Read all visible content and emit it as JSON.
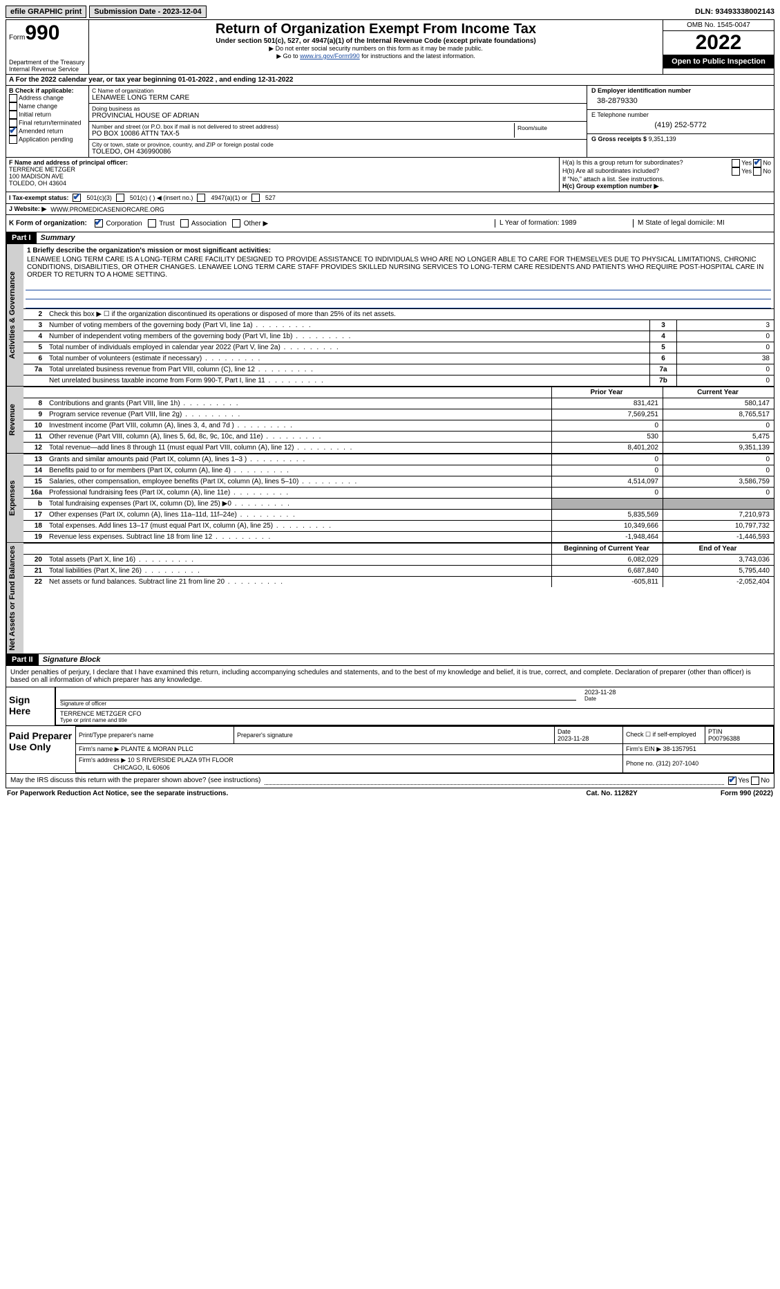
{
  "topbar": {
    "efile": "efile GRAPHIC print",
    "submission": "Submission Date - 2023-12-04",
    "dln": "DLN: 93493338002143"
  },
  "header": {
    "form_label": "Form",
    "form_num": "990",
    "dept": "Department of the Treasury",
    "irs": "Internal Revenue Service",
    "title": "Return of Organization Exempt From Income Tax",
    "subtitle": "Under section 501(c), 527, or 4947(a)(1) of the Internal Revenue Code (except private foundations)",
    "note1": "Do not enter social security numbers on this form as it may be made public.",
    "note2_pre": "Go to ",
    "note2_link": "www.irs.gov/Form990",
    "note2_post": " for instructions and the latest information.",
    "omb": "OMB No. 1545-0047",
    "year": "2022",
    "open": "Open to Public Inspection"
  },
  "sectionA": "A For the 2022 calendar year, or tax year beginning 01-01-2022    , and ending 12-31-2022",
  "colB": {
    "title": "B Check if applicable:",
    "items": [
      "Address change",
      "Name change",
      "Initial return",
      "Final return/terminated",
      "Amended return",
      "Application pending"
    ],
    "checked_idx": 4
  },
  "colC": {
    "name_label": "C Name of organization",
    "name": "LENAWEE LONG TERM CARE",
    "dba_label": "Doing business as",
    "dba": "PROVINCIAL HOUSE OF ADRIAN",
    "addr_label": "Number and street (or P.O. box if mail is not delivered to street address)",
    "addr": "PO BOX 10086 ATTN TAX-5",
    "room_label": "Room/suite",
    "city_label": "City or town, state or province, country, and ZIP or foreign postal code",
    "city": "TOLEDO, OH  436990086"
  },
  "colD": {
    "d_label": "D Employer identification number",
    "d_val": "38-2879330",
    "e_label": "E Telephone number",
    "e_val": "(419) 252-5772",
    "g_label": "G Gross receipts $",
    "g_val": "9,351,139"
  },
  "rowFGH": {
    "f_label": "F  Name and address of principal officer:",
    "f_name": "TERRENCE METZGER",
    "f_addr1": "100 MADISON AVE",
    "f_addr2": "TOLEDO, OH  43604",
    "ha": "H(a)  Is this a group return for subordinates?",
    "hb": "H(b)  Are all subordinates included?",
    "hb_note": "If \"No,\" attach a list. See instructions.",
    "hc": "H(c)  Group exemption number ▶",
    "yes": "Yes",
    "no": "No"
  },
  "rowI": {
    "label": "I   Tax-exempt status:",
    "o1": "501(c)(3)",
    "o2": "501(c) (  ) ◀ (insert no.)",
    "o3": "4947(a)(1) or",
    "o4": "527"
  },
  "rowJ": {
    "label": "J   Website: ▶",
    "val": "WWW.PROMEDICASENIORCARE.ORG"
  },
  "rowK": {
    "label": "K Form of organization:",
    "opts": [
      "Corporation",
      "Trust",
      "Association",
      "Other ▶"
    ],
    "l": "L Year of formation: 1989",
    "m": "M State of legal domicile: MI"
  },
  "part1": {
    "header": "Part I",
    "title": "Summary"
  },
  "summary": {
    "q1_label": "1  Briefly describe the organization's mission or most significant activities:",
    "q1_text": "LENAWEE LONG TERM CARE IS A LONG-TERM CARE FACILITY DESIGNED TO PROVIDE ASSISTANCE TO INDIVIDUALS WHO ARE NO LONGER ABLE TO CARE FOR THEMSELVES DUE TO PHYSICAL LIMITATIONS, CHRONIC CONDITIONS, DISABILITIES, OR OTHER CHANGES. LENAWEE LONG TERM CARE STAFF PROVIDES SKILLED NURSING SERVICES TO LONG-TERM CARE RESIDENTS AND PATIENTS WHO REQUIRE POST-HOSPITAL CARE IN ORDER TO RETURN TO A HOME SETTING.",
    "q2": "Check this box ▶ ☐  if the organization discontinued its operations or disposed of more than 25% of its net assets.",
    "rows_gov": [
      {
        "n": "3",
        "label": "Number of voting members of the governing body (Part VI, line 1a)",
        "k": "3",
        "v": "3"
      },
      {
        "n": "4",
        "label": "Number of independent voting members of the governing body (Part VI, line 1b)",
        "k": "4",
        "v": "0"
      },
      {
        "n": "5",
        "label": "Total number of individuals employed in calendar year 2022 (Part V, line 2a)",
        "k": "5",
        "v": "0"
      },
      {
        "n": "6",
        "label": "Total number of volunteers (estimate if necessary)",
        "k": "6",
        "v": "38"
      },
      {
        "n": "7a",
        "label": "Total unrelated business revenue from Part VIII, column (C), line 12",
        "k": "7a",
        "v": "0"
      },
      {
        "n": "",
        "label": "Net unrelated business taxable income from Form 990-T, Part I, line 11",
        "k": "7b",
        "v": "0"
      }
    ],
    "hdr_prior": "Prior Year",
    "hdr_current": "Current Year",
    "rows_rev": [
      {
        "n": "8",
        "label": "Contributions and grants (Part VIII, line 1h)",
        "p": "831,421",
        "c": "580,147"
      },
      {
        "n": "9",
        "label": "Program service revenue (Part VIII, line 2g)",
        "p": "7,569,251",
        "c": "8,765,517"
      },
      {
        "n": "10",
        "label": "Investment income (Part VIII, column (A), lines 3, 4, and 7d )",
        "p": "0",
        "c": "0"
      },
      {
        "n": "11",
        "label": "Other revenue (Part VIII, column (A), lines 5, 6d, 8c, 9c, 10c, and 11e)",
        "p": "530",
        "c": "5,475"
      },
      {
        "n": "12",
        "label": "Total revenue—add lines 8 through 11 (must equal Part VIII, column (A), line 12)",
        "p": "8,401,202",
        "c": "9,351,139"
      }
    ],
    "rows_exp": [
      {
        "n": "13",
        "label": "Grants and similar amounts paid (Part IX, column (A), lines 1–3 )",
        "p": "0",
        "c": "0"
      },
      {
        "n": "14",
        "label": "Benefits paid to or for members (Part IX, column (A), line 4)",
        "p": "0",
        "c": "0"
      },
      {
        "n": "15",
        "label": "Salaries, other compensation, employee benefits (Part IX, column (A), lines 5–10)",
        "p": "4,514,097",
        "c": "3,586,759"
      },
      {
        "n": "16a",
        "label": "Professional fundraising fees (Part IX, column (A), line 11e)",
        "p": "0",
        "c": "0"
      },
      {
        "n": "b",
        "label": "Total fundraising expenses (Part IX, column (D), line 25) ▶0",
        "p": "",
        "c": "",
        "grey": true
      },
      {
        "n": "17",
        "label": "Other expenses (Part IX, column (A), lines 11a–11d, 11f–24e)",
        "p": "5,835,569",
        "c": "7,210,973"
      },
      {
        "n": "18",
        "label": "Total expenses. Add lines 13–17 (must equal Part IX, column (A), line 25)",
        "p": "10,349,666",
        "c": "10,797,732"
      },
      {
        "n": "19",
        "label": "Revenue less expenses. Subtract line 18 from line 12",
        "p": "-1,948,464",
        "c": "-1,446,593"
      }
    ],
    "hdr_begin": "Beginning of Current Year",
    "hdr_end": "End of Year",
    "rows_net": [
      {
        "n": "20",
        "label": "Total assets (Part X, line 16)",
        "p": "6,082,029",
        "c": "3,743,036"
      },
      {
        "n": "21",
        "label": "Total liabilities (Part X, line 26)",
        "p": "6,687,840",
        "c": "5,795,440"
      },
      {
        "n": "22",
        "label": "Net assets or fund balances. Subtract line 21 from line 20",
        "p": "-605,811",
        "c": "-2,052,404"
      }
    ],
    "vtabs": {
      "gov": "Activities & Governance",
      "rev": "Revenue",
      "exp": "Expenses",
      "net": "Net Assets or Fund Balances"
    }
  },
  "part2": {
    "header": "Part II",
    "title": "Signature Block",
    "declaration": "Under penalties of perjury, I declare that I have examined this return, including accompanying schedules and statements, and to the best of my knowledge and belief, it is true, correct, and complete. Declaration of preparer (other than officer) is based on all information of which preparer has any knowledge."
  },
  "sign": {
    "label": "Sign Here",
    "sig_officer": "Signature of officer",
    "date": "Date",
    "date_val": "2023-11-28",
    "name": "TERRENCE METZGER  CFO",
    "name_label": "Type or print name and title"
  },
  "prep": {
    "label": "Paid Preparer Use Only",
    "h1": "Print/Type preparer's name",
    "h2": "Preparer's signature",
    "h3": "Date",
    "h3v": "2023-11-28",
    "h4": "Check ☐ if self-employed",
    "h5": "PTIN",
    "h5v": "P00796388",
    "firm_label": "Firm's name    ▶",
    "firm": "PLANTE & MORAN PLLC",
    "ein_label": "Firm's EIN ▶",
    "ein": "38-1357951",
    "addr_label": "Firm's address ▶",
    "addr1": "10 S RIVERSIDE PLAZA 9TH FLOOR",
    "addr2": "CHICAGO, IL  60606",
    "phone_label": "Phone no.",
    "phone": "(312) 207-1040"
  },
  "footer": {
    "discuss": "May the IRS discuss this return with the preparer shown above? (see instructions)",
    "yes": "Yes",
    "no": "No",
    "paperwork": "For Paperwork Reduction Act Notice, see the separate instructions.",
    "cat": "Cat. No. 11282Y",
    "form": "Form 990 (2022)"
  }
}
